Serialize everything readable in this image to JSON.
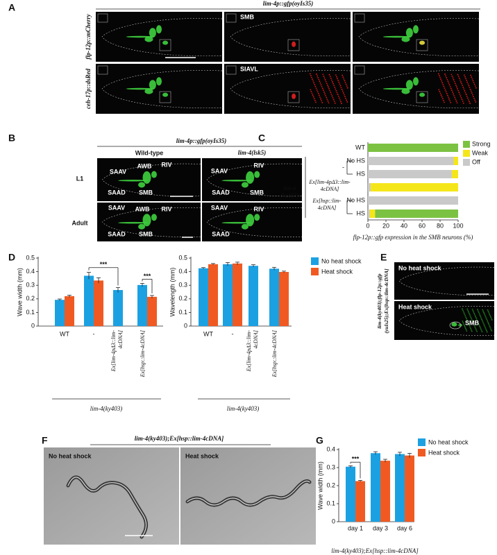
{
  "panels": {
    "A": {
      "label": "A",
      "title": "lim-4p::gfp(oyIs35)",
      "rows": [
        "flp-12p::mCherry",
        "ceh-17p::dsRed"
      ],
      "annotations": [
        "SMB",
        "SIAVL"
      ]
    },
    "B": {
      "label": "B",
      "title": "lim-4p::gfp(oyIs35)",
      "columns": [
        "Wild-type",
        "lim-4(lsk5)"
      ],
      "rows": [
        "L1",
        "Adult"
      ],
      "neurons": [
        [
          "SAAV",
          "AWB",
          "RIV",
          "SAAD",
          "SMB"
        ],
        [
          "SAAV",
          "RIV",
          "SAAD",
          "SMB"
        ],
        [
          "SAAV",
          "AWB",
          "RIV",
          "SAAD",
          "SMB"
        ],
        [
          "SAAV",
          "RIV",
          "SAAD"
        ]
      ]
    },
    "C": {
      "label": "C"
    },
    "D": {
      "label": "D"
    },
    "E": {
      "label": "E",
      "genotype": "lim-4(ky403);flp-12p::gfp (yuIs25);Ex[hsp::lim-4cDNA]",
      "conditions": [
        "No heat shock",
        "Heat shock"
      ],
      "annotation": "SMB"
    },
    "F": {
      "label": "F",
      "title": "lim-4(ky403);Ex[hsp::lim-4cDNA]",
      "conditions": [
        "No heat shock",
        "Heat shock"
      ]
    },
    "G": {
      "label": "G"
    }
  },
  "chart_data": [
    {
      "type": "stacked-barh",
      "categories": [
        "WT",
        "No HS",
        "HS",
        null,
        "No HS",
        "HS"
      ],
      "group_labels": [
        "-",
        "Ex[lim-4pΔ3::lim-4cDNA]",
        "Ex[hsp::lim-4cDNA]"
      ],
      "group_title": "lim-4 (ky403)",
      "series": [
        {
          "name": "Strong",
          "color": "#7cc242",
          "values": [
            100,
            0,
            0,
            0,
            0,
            92
          ]
        },
        {
          "name": "Weak",
          "color": "#f5e61a",
          "values": [
            0,
            5,
            7,
            97,
            0,
            6
          ]
        },
        {
          "name": "Off",
          "color": "#c9c9c9",
          "values": [
            0,
            95,
            93,
            3,
            100,
            2
          ]
        }
      ],
      "xlim": [
        0,
        100
      ],
      "xticks": [
        0,
        20,
        40,
        60,
        80,
        100
      ],
      "xlabel": "flp-12p::gfp expression in the SMB neurons (%)"
    },
    {
      "type": "bar",
      "categories": [
        "WT",
        "-",
        "Ex[lim-4pΔ3::lim-4cDNA]",
        "Ex[hsp::lim-4cDNA]"
      ],
      "series": [
        {
          "color": "#1ba1e2",
          "values": [
            0.193,
            0.37,
            0.265,
            0.302
          ],
          "errors": [
            0.006,
            0.025,
            0.018,
            0.012
          ]
        },
        {
          "color": "#f05a22",
          "values": [
            0.22,
            0.335,
            null,
            0.215
          ],
          "errors": [
            0.007,
            0.02,
            null,
            0.01
          ]
        }
      ],
      "ylim": [
        0,
        0.5
      ],
      "yticks": [
        0,
        0.1,
        0.2,
        0.3,
        0.4,
        0.5
      ],
      "ylabel": "Wave width (mm)",
      "annotations": [
        "***",
        "***"
      ],
      "group_label": "lim-4(ky403)"
    },
    {
      "type": "bar",
      "categories": [
        "WT",
        "-",
        "Ex[lim-4pΔ3::lim-4cDNA]",
        "Ex[hsp::lim-4cDNA]"
      ],
      "series": [
        {
          "name": "No heat shock",
          "color": "#1ba1e2",
          "values": [
            0.425,
            0.455,
            0.443,
            0.422
          ],
          "errors": [
            0.005,
            0.012,
            0.008,
            0.01
          ]
        },
        {
          "name": "Heat shock",
          "color": "#f05a22",
          "values": [
            0.455,
            0.46,
            null,
            0.398
          ],
          "errors": [
            0.005,
            0.01,
            null,
            0.006
          ]
        }
      ],
      "ylim": [
        0,
        0.5
      ],
      "yticks": [
        0,
        0.1,
        0.2,
        0.3,
        0.4,
        0.5
      ],
      "ylabel": "Wavelength (mm)",
      "group_label": "lim-4(ky403)"
    },
    {
      "type": "bar",
      "categories": [
        "day 1",
        "day 3",
        "day 6"
      ],
      "series": [
        {
          "name": "No heat shock",
          "color": "#1ba1e2",
          "values": [
            0.305,
            0.38,
            0.375
          ],
          "errors": [
            0.005,
            0.008,
            0.01
          ]
        },
        {
          "name": "Heat shock",
          "color": "#f05a22",
          "values": [
            0.225,
            0.338,
            0.367
          ],
          "errors": [
            0.004,
            0.008,
            0.012
          ]
        }
      ],
      "ylim": [
        0,
        0.4
      ],
      "yticks": [
        0,
        0.1,
        0.2,
        0.3,
        0.4
      ],
      "ylabel": "Wave width (mm)",
      "annotations": [
        "***"
      ],
      "xlabel": "lim-4(ky403);Ex[hsp::lim-4cDNA]"
    }
  ]
}
